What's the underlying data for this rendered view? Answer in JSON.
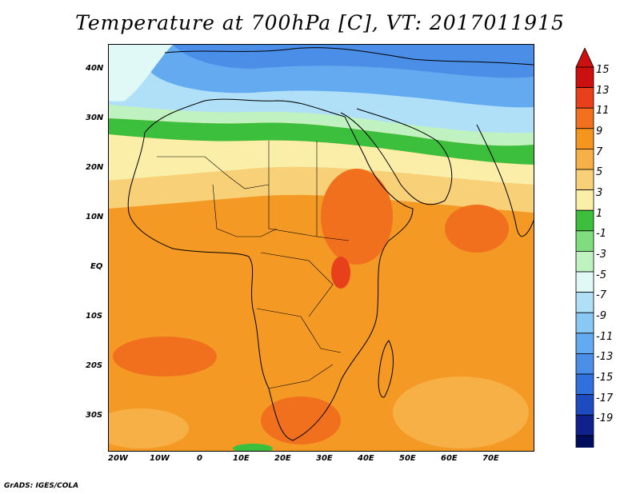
{
  "title": "Temperature at 700hPa [C], VT: 2017011915",
  "credit": "GrADS: IGES/COLA",
  "lat_labels": [
    "40N",
    "30N",
    "20N",
    "10N",
    "EQ",
    "10S",
    "20S",
    "30S"
  ],
  "lon_labels": [
    "20W",
    "10W",
    "0",
    "10E",
    "20E",
    "30E",
    "40E",
    "50E",
    "60E",
    "70E"
  ],
  "colorbar": {
    "labels": [
      "15",
      "13",
      "11",
      "9",
      "7",
      "5",
      "3",
      "1",
      "-1",
      "-3",
      "-5",
      "-7",
      "-9",
      "-11",
      "-13",
      "-15",
      "-17",
      "-19"
    ],
    "colors": [
      "#cc1010",
      "#e8401a",
      "#f0701e",
      "#f4961e",
      "#f6b046",
      "#f8d078",
      "#fbeea8",
      "#3cbf3c",
      "#7fdc7f",
      "#bff2c0",
      "#e0f8f6",
      "#b0e0f8",
      "#8ac8f4",
      "#64aaf0",
      "#4a8ee8",
      "#3070dc",
      "#1e4cc0",
      "#10208c",
      "#000c5c"
    ],
    "overflow_high": "#cc1010",
    "overflow_low": "#e6e6ff"
  }
}
